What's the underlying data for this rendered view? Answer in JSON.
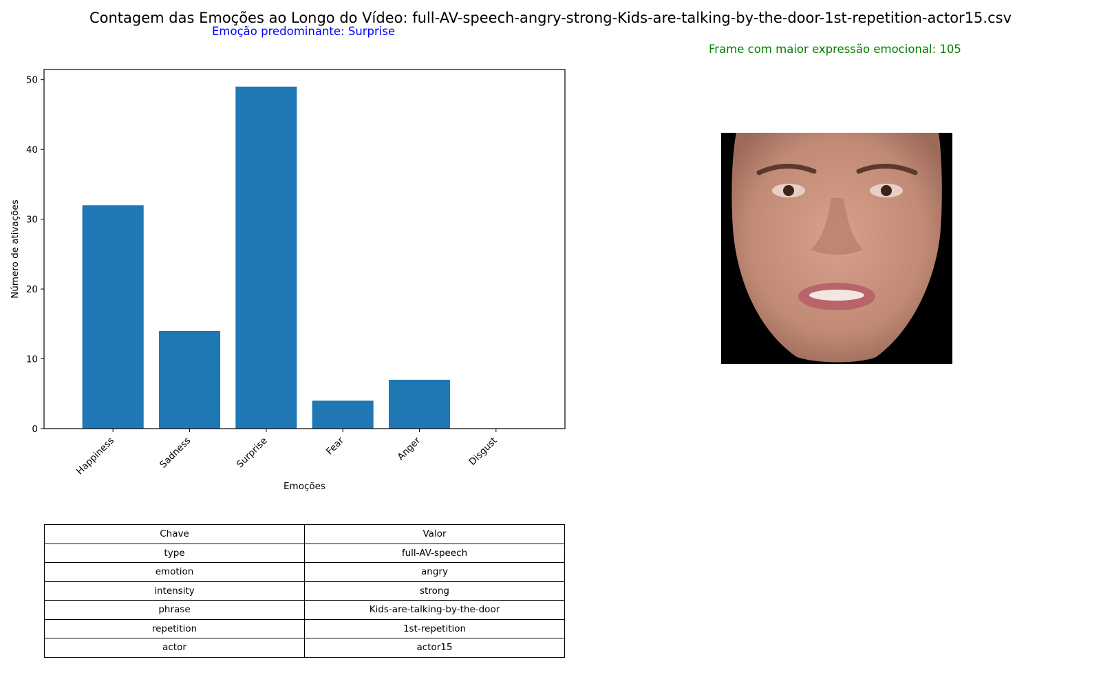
{
  "title": "Contagem das Emoções ao Longo do Vídeo: full-AV-speech-angry-strong-Kids-are-talking-by-the-door-1st-repetition-actor15.csv",
  "predominant_label": "Emoção predominante: Surprise",
  "frame_label": "Frame com maior expressão emocional: 105",
  "colors": {
    "bar": "#1f77b4",
    "predominant_text": "#0000ff",
    "frame_text": "#008000"
  },
  "chart_data": {
    "type": "bar",
    "categories": [
      "Happiness",
      "Sadness",
      "Surprise",
      "Fear",
      "Anger",
      "Disgust"
    ],
    "values": [
      32,
      14,
      49,
      4,
      7,
      0
    ],
    "xlabel": "Emoções",
    "ylabel": "Número de ativações",
    "ylim": [
      0,
      51.45
    ],
    "yticks": [
      0,
      10,
      20,
      30,
      40,
      50
    ],
    "grid": false
  },
  "image": {
    "alt": "face-frame-105"
  },
  "table": {
    "header": [
      "Chave",
      "Valor"
    ],
    "rows": [
      [
        "type",
        "full-AV-speech"
      ],
      [
        "emotion",
        "angry"
      ],
      [
        "intensity",
        "strong"
      ],
      [
        "phrase",
        "Kids-are-talking-by-the-door"
      ],
      [
        "repetition",
        "1st-repetition"
      ],
      [
        "actor",
        "actor15"
      ]
    ]
  }
}
